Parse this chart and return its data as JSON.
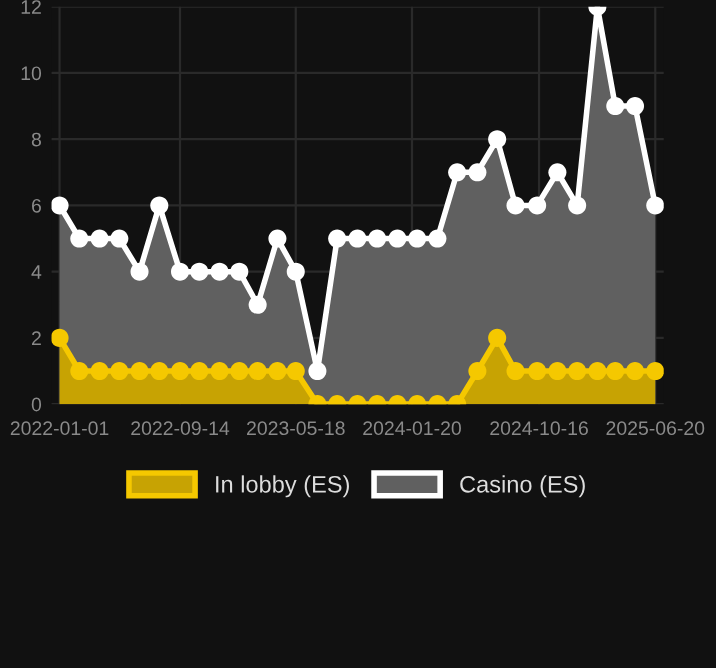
{
  "chart_data": {
    "type": "area",
    "x": [
      "2022-01-01",
      "2022-02-12",
      "2022-03-27",
      "2022-05-08",
      "2022-06-20",
      "2022-08-01",
      "2022-09-14",
      "2022-10-25",
      "2022-12-07",
      "2023-01-18",
      "2023-02-26",
      "2023-04-09",
      "2023-05-18",
      "2023-07-03",
      "2023-08-14",
      "2023-09-26",
      "2023-11-07",
      "2023-12-20",
      "2024-01-31",
      "2024-03-14",
      "2024-04-25",
      "2024-06-07",
      "2024-07-19",
      "2024-08-27",
      "2024-10-12",
      "2024-11-24",
      "2025-01-05",
      "2025-02-17",
      "2025-03-27",
      "2025-05-08",
      "2025-06-20"
    ],
    "series": [
      {
        "name": "Casino (ES)",
        "color": "#ffffff",
        "values": [
          6,
          5,
          5,
          5,
          4,
          6,
          4,
          4,
          4,
          4,
          3,
          5,
          4,
          1,
          5,
          5,
          5,
          5,
          5,
          5,
          7,
          7,
          8,
          6,
          6,
          7,
          6,
          12,
          9,
          9,
          6
        ]
      },
      {
        "name": "In lobby (ES)",
        "color": "#f5c800",
        "values": [
          2,
          1,
          1,
          1,
          1,
          1,
          1,
          1,
          1,
          1,
          1,
          1,
          1,
          0,
          0,
          0,
          0,
          0,
          0,
          0,
          0,
          1,
          2,
          1,
          1,
          1,
          1,
          1,
          1,
          1,
          1
        ]
      }
    ],
    "xlim": [
      "2021-12-15",
      "2025-07-08"
    ],
    "xticks": [
      "2022-01-01",
      "2022-09-14",
      "2023-05-18",
      "2024-01-20",
      "2024-10-16",
      "2025-06-20"
    ],
    "ylim": [
      0,
      12
    ],
    "yticks": [
      0,
      2,
      4,
      6,
      8,
      10,
      12
    ],
    "grid": true,
    "legend": "bottom",
    "marker": "circle",
    "line_style": "solid"
  }
}
